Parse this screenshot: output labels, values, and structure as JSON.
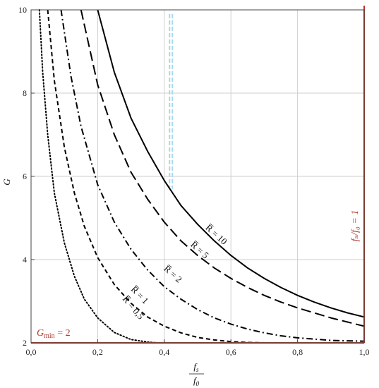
{
  "chart_data": {
    "type": "line",
    "xlabel_num": "f",
    "xlabel_num_sub": "s",
    "xlabel_den": "f",
    "xlabel_den_sub": "0",
    "ylabel": "G",
    "xlim": [
      0,
      1
    ],
    "ylim": [
      2,
      10
    ],
    "grid": true,
    "x_ticks": [
      "0,0",
      "0,2",
      "0,4",
      "0,6",
      "0,8",
      "1,0"
    ],
    "y_ticks": [
      "2",
      "4",
      "6",
      "8",
      "10"
    ],
    "series": [
      {
        "name": "R̅ = 10",
        "style": "solid",
        "x": [
          0.2,
          0.25,
          0.3,
          0.35,
          0.4,
          0.45,
          0.5,
          0.55,
          0.6,
          0.65,
          0.7,
          0.75,
          0.8,
          0.85,
          0.9,
          0.95,
          1.0
        ],
        "y": [
          10,
          8.5,
          7.4,
          6.6,
          5.9,
          5.3,
          4.85,
          4.45,
          4.1,
          3.8,
          3.55,
          3.33,
          3.14,
          2.98,
          2.84,
          2.72,
          2.62
        ]
      },
      {
        "name": "R̅ = 5",
        "style": "dashed",
        "x": [
          0.15,
          0.2,
          0.25,
          0.3,
          0.35,
          0.4,
          0.45,
          0.5,
          0.55,
          0.6,
          0.65,
          0.7,
          0.75,
          0.8,
          0.85,
          0.9,
          0.95,
          1.0
        ],
        "y": [
          10,
          8.2,
          7.0,
          6.1,
          5.45,
          4.9,
          4.45,
          4.1,
          3.8,
          3.55,
          3.33,
          3.14,
          2.98,
          2.84,
          2.72,
          2.6,
          2.5,
          2.4
        ]
      },
      {
        "name": "R̅ = 2",
        "style": "dashdot",
        "x": [
          0.09,
          0.12,
          0.15,
          0.2,
          0.25,
          0.3,
          0.35,
          0.4,
          0.45,
          0.5,
          0.55,
          0.6,
          0.65,
          0.7,
          0.75,
          0.8,
          0.85,
          0.9,
          0.95,
          1.0
        ],
        "y": [
          10,
          8.4,
          7.2,
          5.8,
          4.9,
          4.25,
          3.75,
          3.35,
          3.05,
          2.8,
          2.6,
          2.45,
          2.33,
          2.24,
          2.17,
          2.12,
          2.09,
          2.06,
          2.05,
          2.04
        ]
      },
      {
        "name": "R̅ = 1",
        "style": "shortdash",
        "x": [
          0.05,
          0.07,
          0.1,
          0.13,
          0.16,
          0.2,
          0.25,
          0.3,
          0.35,
          0.4,
          0.45,
          0.5,
          0.55,
          0.6,
          0.65,
          0.7
        ],
        "y": [
          10,
          8.3,
          6.7,
          5.6,
          4.8,
          4.05,
          3.4,
          2.95,
          2.62,
          2.4,
          2.24,
          2.13,
          2.07,
          2.03,
          2.01,
          2.0
        ]
      },
      {
        "name": "R̅ = 0,5",
        "style": "dotted",
        "x": [
          0.025,
          0.035,
          0.05,
          0.07,
          0.1,
          0.13,
          0.16,
          0.2,
          0.25,
          0.3,
          0.35,
          0.38
        ],
        "y": [
          10,
          8.5,
          7.0,
          5.6,
          4.4,
          3.6,
          3.05,
          2.6,
          2.25,
          2.08,
          2.02,
          2.0
        ]
      }
    ],
    "curve_labels": [
      {
        "text": "R̅ = 10"
      },
      {
        "text": "R̅ = 5"
      },
      {
        "text": "R̅ = 2"
      },
      {
        "text": "R̅ = 1"
      },
      {
        "text": "R̅ = 0,5"
      }
    ],
    "reference_lines": {
      "gmin": {
        "value": 2,
        "label_main": "G",
        "label_sub": "min",
        "label_tail": " = 2",
        "color": "#b13a2a"
      },
      "fs_f0": {
        "value": 1.0,
        "label": "fₛ/f₀ = 1",
        "color": "#b13a2a"
      }
    },
    "highlight_band_x": 0.42,
    "highlight_color": "#a8d8ec"
  }
}
